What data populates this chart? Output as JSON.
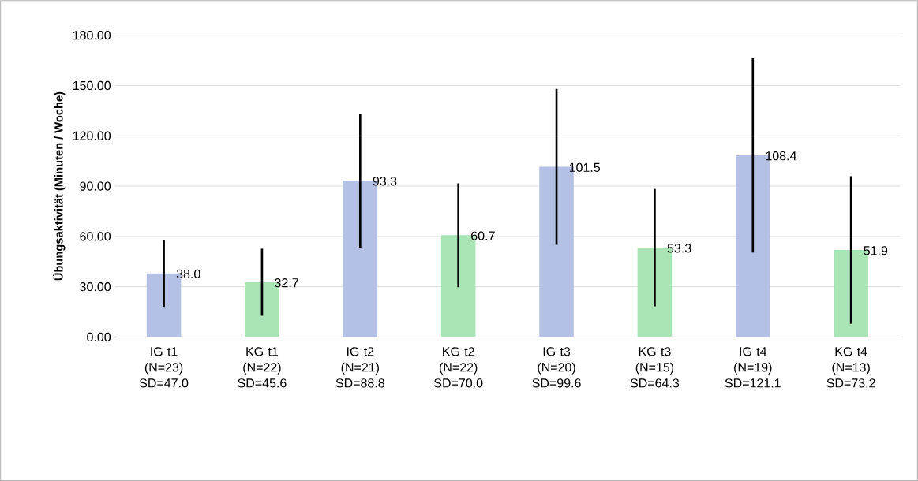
{
  "chart_data": {
    "type": "bar",
    "ylabel": "Übungsaktivität (Minuten / Woche)",
    "categories": [
      "IG t1 (N=23) SD=47.0",
      "KG t1 (N=22) SD=45.6",
      "IG t2 (N=21) SD=88.8",
      "KG t2 (N=22) SD=70.0",
      "IG t3 (N=20) SD=99.6",
      "KG t3 (N=15) SD=64.3",
      "IG t4 (N=19) SD=121.1",
      "KG t4 (N=13) SD=73.2"
    ],
    "values": [
      38.0,
      32.7,
      93.3,
      60.7,
      101.5,
      53.3,
      108.4,
      51.9
    ],
    "value_labels": [
      "38.0",
      "32.7",
      "93.3",
      "60.7",
      "101.5",
      "53.3",
      "108.4",
      "51.9"
    ],
    "colors": [
      "#b4c0e4",
      "#a9e4b4",
      "#b4c0e4",
      "#a9e4b4",
      "#b4c0e4",
      "#a9e4b4",
      "#b4c0e4",
      "#a9e4b4"
    ],
    "errors": [
      [
        18,
        58
      ],
      [
        12.7,
        52.7
      ],
      [
        53.3,
        133.3
      ],
      [
        29.7,
        91.7
      ],
      [
        55,
        148
      ],
      [
        18.3,
        88.3
      ],
      [
        50.4,
        166.4
      ],
      [
        7.9,
        95.9
      ]
    ],
    "ylim": [
      0,
      180
    ],
    "yticks": [
      {
        "value": 0,
        "label": "0.00"
      },
      {
        "value": 30,
        "label": "30.00"
      },
      {
        "value": 60,
        "label": "60.00"
      },
      {
        "value": 90,
        "label": "90.00"
      },
      {
        "value": 120,
        "label": "120.00"
      },
      {
        "value": 150,
        "label": "150.00"
      },
      {
        "value": 180,
        "label": "180.00"
      }
    ],
    "grid": "y"
  }
}
